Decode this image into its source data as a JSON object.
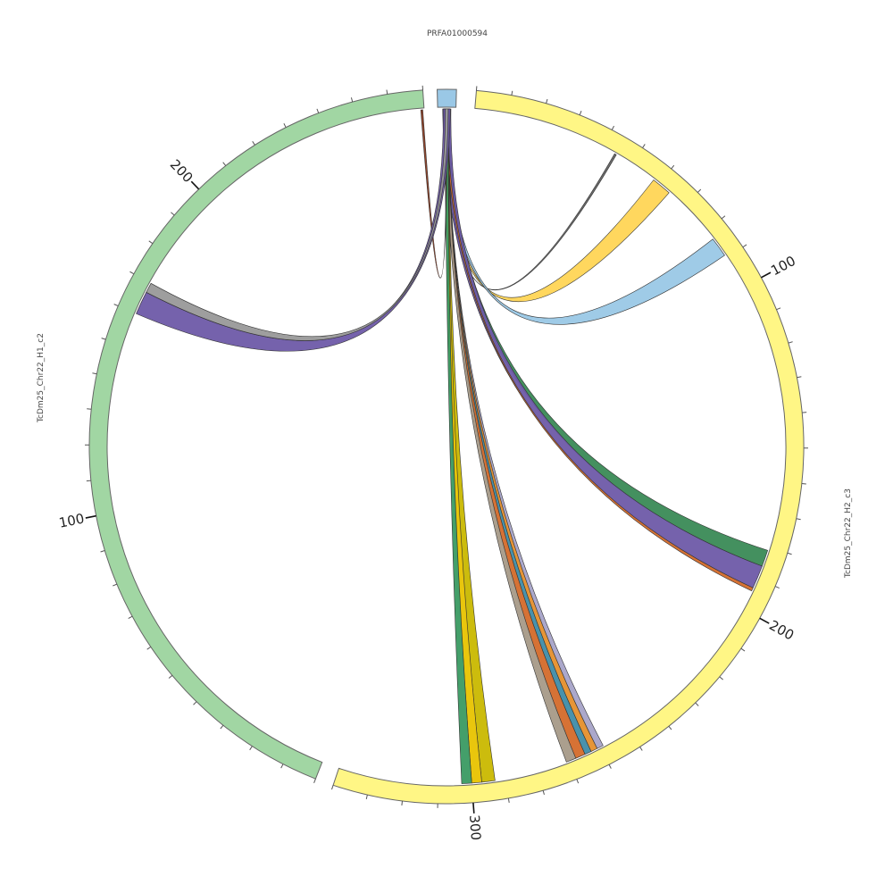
{
  "figure": {
    "type": "circos",
    "segments": [
      {
        "id": "prfa",
        "name": "PRFA01000594",
        "color": "#9ac8e6",
        "length": 6,
        "major_ticks": []
      },
      {
        "id": "h2",
        "name": "TcDm25_Chr22_H2_c3",
        "color": "#fff685",
        "length": 340,
        "major_ticks": [
          {
            "pos": 100,
            "label": "100"
          },
          {
            "pos": 200,
            "label": "200"
          },
          {
            "pos": 300,
            "label": "300"
          }
        ]
      },
      {
        "id": "h1",
        "name": "TcDm25_Chr22_H1_c2",
        "color": "#a1d6a3",
        "length": 270,
        "major_ticks": [
          {
            "pos": 100,
            "label": "100"
          },
          {
            "pos": 200,
            "label": "200"
          }
        ]
      }
    ],
    "links": [
      {
        "target": "h2",
        "start": 44,
        "end": 44.6,
        "width": 1.4,
        "color": "#666666"
      },
      {
        "target": "h2",
        "start": 58,
        "end": 64,
        "width": 10,
        "color": "#ffd555"
      },
      {
        "target": "h2",
        "start": 83,
        "end": 89,
        "width": 8,
        "color": "#9ac8e6"
      },
      {
        "target": "h2",
        "start": 181,
        "end": 186,
        "width": 10,
        "color": "#3a8a56"
      },
      {
        "target": "h2",
        "start": 186,
        "end": 193,
        "width": 14,
        "color": "#6e5aa8"
      },
      {
        "target": "h2",
        "start": 193,
        "end": 194,
        "width": 3,
        "color": "#d46a2a"
      },
      {
        "target": "h2",
        "start": 259,
        "end": 261,
        "width": 5,
        "color": "#a6a3c8"
      },
      {
        "target": "h2",
        "start": 261,
        "end": 263,
        "width": 5,
        "color": "#e58f2c"
      },
      {
        "target": "h2",
        "start": 263,
        "end": 265,
        "width": 5,
        "color": "#3f8ca8"
      },
      {
        "target": "h2",
        "start": 265,
        "end": 268,
        "width": 5,
        "color": "#d46a2a"
      },
      {
        "target": "h2",
        "start": 268,
        "end": 271,
        "width": 5,
        "color": "#a69a88"
      },
      {
        "target": "h2",
        "start": 293,
        "end": 297,
        "width": 8,
        "color": "#c9b800"
      },
      {
        "target": "h2",
        "start": 297,
        "end": 300,
        "width": 7,
        "color": "#e8c300"
      },
      {
        "target": "h2",
        "start": 300,
        "end": 303,
        "width": 6,
        "color": "#3a9a62"
      },
      {
        "target": "h1",
        "start": 269,
        "end": 269.6,
        "width": 1.4,
        "color": "#8b3a20"
      },
      {
        "target": "h1",
        "start": 160,
        "end": 167,
        "width": 12,
        "color": "#6e5aa8"
      },
      {
        "target": "h1",
        "start": 167,
        "end": 170,
        "width": 5,
        "color": "#999999"
      }
    ]
  }
}
